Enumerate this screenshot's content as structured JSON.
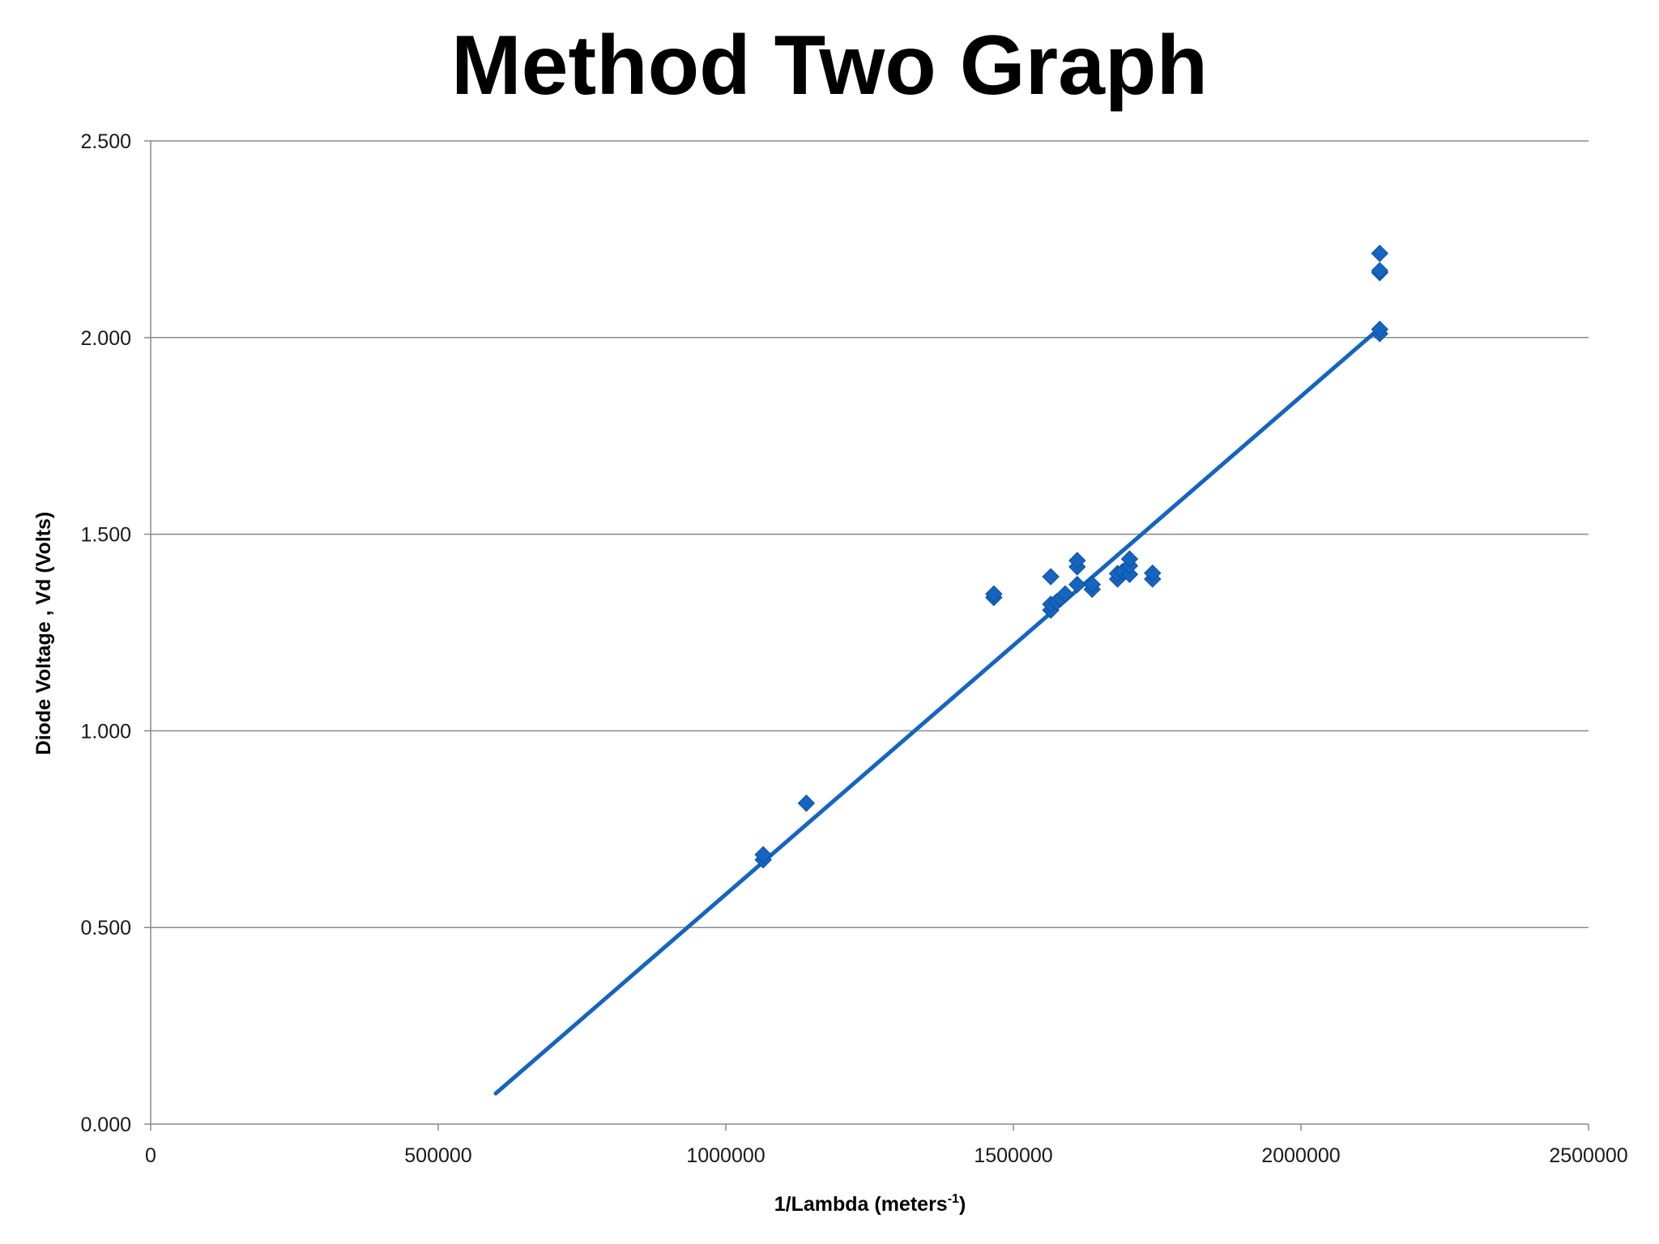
{
  "chart_data": {
    "type": "scatter",
    "title": "Method Two Graph",
    "xlabel": {
      "base": "1/Lambda (meters",
      "superscript": "-1",
      "close": ")"
    },
    "ylabel": "Diode Voltage , Vd (Volts)",
    "xlim": [
      0,
      2500000
    ],
    "ylim": [
      0,
      2.5
    ],
    "x_ticks": [
      0,
      500000,
      1000000,
      1500000,
      2000000,
      2500000
    ],
    "x_tick_labels": [
      "0",
      "500000",
      "1000000",
      "1500000",
      "2000000",
      "2500000"
    ],
    "y_ticks": [
      0,
      0.5,
      1.0,
      1.5,
      2.0,
      2.5
    ],
    "y_tick_labels": [
      "0.000",
      "0.500",
      "1.000",
      "1.500",
      "2.000",
      "2.500"
    ],
    "grid": {
      "horizontal": true,
      "vertical": false
    },
    "legend": "none",
    "marker": "diamond",
    "series": [
      {
        "color": "#1565c0",
        "points": [
          [
            1065000,
            0.672
          ],
          [
            1065000,
            0.685
          ],
          [
            1140000,
            0.816
          ],
          [
            1466000,
            1.339
          ],
          [
            1466000,
            1.348
          ],
          [
            1565000,
            1.307
          ],
          [
            1565000,
            1.322
          ],
          [
            1565000,
            1.392
          ],
          [
            1575000,
            1.328
          ],
          [
            1582000,
            1.336
          ],
          [
            1590000,
            1.348
          ],
          [
            1611000,
            1.372
          ],
          [
            1611000,
            1.417
          ],
          [
            1611000,
            1.433
          ],
          [
            1637000,
            1.36
          ],
          [
            1637000,
            1.372
          ],
          [
            1681000,
            1.386
          ],
          [
            1681000,
            1.4
          ],
          [
            1690000,
            1.405
          ],
          [
            1702000,
            1.398
          ],
          [
            1702000,
            1.42
          ],
          [
            1702000,
            1.437
          ],
          [
            1742000,
            1.386
          ],
          [
            1742000,
            1.401
          ],
          [
            2137000,
            2.01
          ],
          [
            2137000,
            2.021
          ],
          [
            2137000,
            2.165
          ],
          [
            2137000,
            2.17
          ],
          [
            2137000,
            2.214
          ]
        ]
      }
    ],
    "trendline": {
      "type": "linear",
      "color": "#1565c0",
      "x_start": 600000,
      "y_start": 0.078,
      "x_end": 2130000,
      "y_end": 2.015
    }
  }
}
